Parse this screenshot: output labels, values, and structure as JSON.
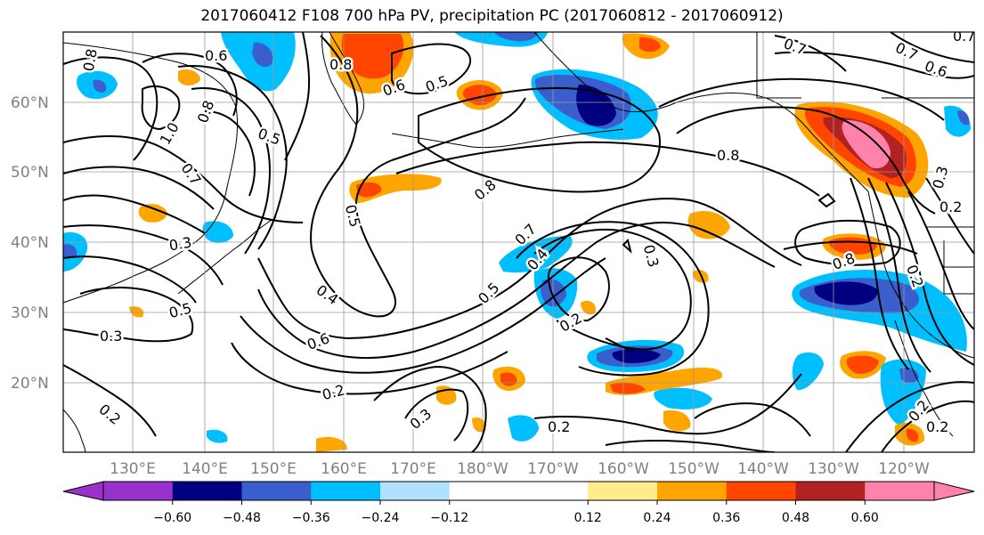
{
  "title": "2017060412 F108 700 hPa PV, precipitation PC (2017060812 - 2017060912)",
  "latitude_labels": [
    "60°N",
    "50°N",
    "40°N",
    "30°N",
    "20°N"
  ],
  "longitude_labels": [
    "130°E",
    "140°E",
    "150°E",
    "160°E",
    "170°E",
    "180°W",
    "170°W",
    "160°W",
    "150°W",
    "140°W",
    "130°W",
    "120°W"
  ],
  "colorbar": {
    "colors": [
      "#9932cc",
      "#000080",
      "#3a5fcd",
      "#00bfff",
      "#b0e2ff",
      "#ffffff",
      "#ffffff",
      "#ffec8b",
      "#ffa500",
      "#ff4500",
      "#b22222",
      "#ff82ab"
    ],
    "extend_low_color": "#9932cc",
    "extend_high_color": "#ff82ab",
    "tick_labels": [
      "−0.60",
      "−0.48",
      "−0.36",
      "−0.24",
      "−0.12",
      "0.12",
      "0.24",
      "0.36",
      "0.48",
      "0.60"
    ]
  },
  "contour_labels": [
    "0.8",
    "0.6",
    "0.8",
    "0.6",
    "0.5",
    "0.7",
    "0.7",
    "0.6",
    "0.7",
    "1.0",
    "0.8",
    "0.5",
    "0.7",
    "0.8",
    "0.8",
    "0.3",
    "0.5",
    "0.5",
    "0.7",
    "0.4",
    "0.3",
    "0.2",
    "0.4",
    "0.5",
    "0.6",
    "0.3",
    "0.2",
    "0.8",
    "0.2",
    "0.3",
    "0.2",
    "0.2",
    "0.3",
    "0.2",
    "0.2",
    "0.2"
  ]
}
